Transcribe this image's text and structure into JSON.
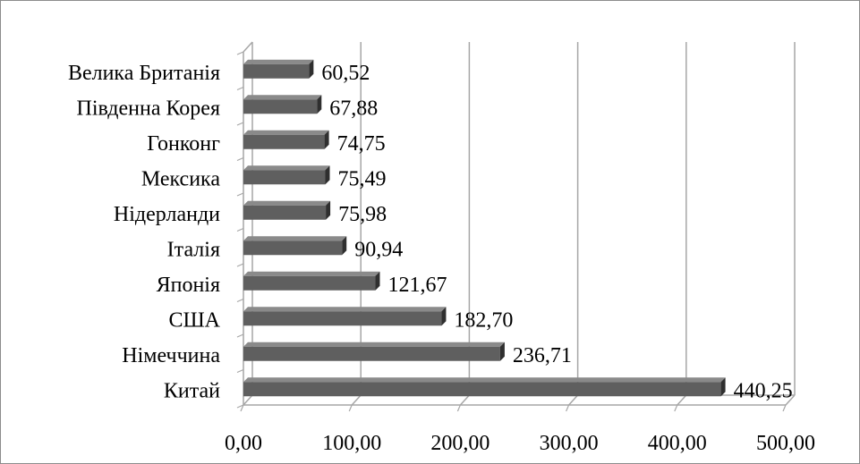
{
  "chart_data": {
    "type": "bar",
    "orientation": "horizontal",
    "style": "3d",
    "categories": [
      "Велика Британія",
      "Південна Корея",
      "Гонконг",
      "Мексика",
      "Нідерланди",
      "Італія",
      "Японія",
      "США",
      "Німеччина",
      "Китай"
    ],
    "values": [
      60.52,
      67.88,
      74.75,
      75.49,
      75.98,
      90.94,
      121.67,
      182.7,
      236.71,
      440.25
    ],
    "value_labels": [
      "60,52",
      "67,88",
      "74,75",
      "75,49",
      "75,98",
      "90,94",
      "121,67",
      "182,70",
      "236,71",
      "440,25"
    ],
    "xlim": [
      0,
      500
    ],
    "x_ticks": [
      0,
      100,
      200,
      300,
      400,
      500
    ],
    "x_tick_labels": [
      "0,00",
      "100,00",
      "200,00",
      "300,00",
      "400,00",
      "500,00"
    ],
    "grid": "vertical",
    "legend": "none",
    "colors": {
      "bar_front": "#5f5f5f",
      "bar_side": "#2f2f2f",
      "bar_top": "#8a8a8a",
      "grid": "#a6a6a6",
      "axis": "#a6a6a6"
    }
  }
}
